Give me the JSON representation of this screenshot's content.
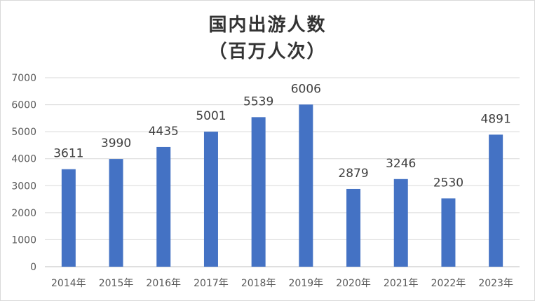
{
  "chart_data": {
    "type": "bar",
    "title": "国内出游人数",
    "subtitle": "（百万人次）",
    "categories": [
      "2014年",
      "2015年",
      "2016年",
      "2017年",
      "2018年",
      "2019年",
      "2020年",
      "2021年",
      "2022年",
      "2023年"
    ],
    "values": [
      3611,
      3990,
      4435,
      5001,
      5539,
      6006,
      2879,
      3246,
      2530,
      4891
    ],
    "ylim": [
      0,
      7000
    ],
    "yticks": [
      0,
      1000,
      2000,
      3000,
      4000,
      5000,
      6000,
      7000
    ],
    "grid": true,
    "bar_color": "#4472c4",
    "grid_color": "#d9d9d9"
  }
}
